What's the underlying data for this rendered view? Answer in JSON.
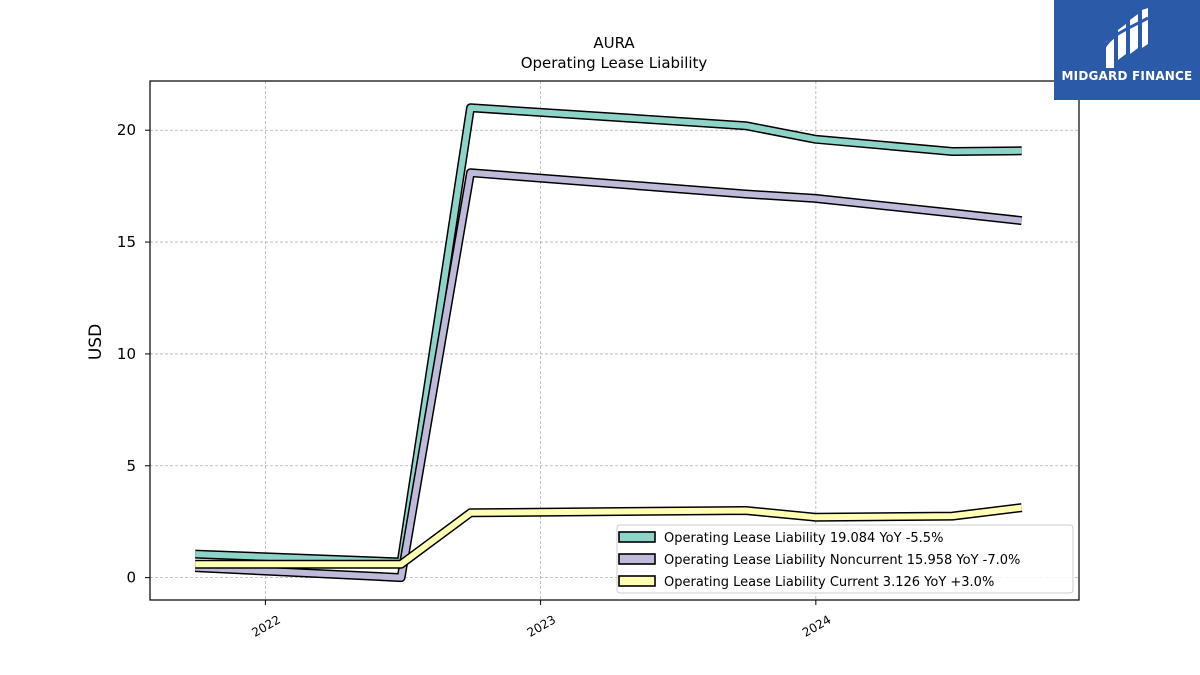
{
  "chart_data": {
    "type": "line",
    "title": "AURA",
    "subtitle": "Operating Lease Liability",
    "ylabel": "USD",
    "xlabel": "",
    "x": [
      "2021-09-30",
      "2022-06-30",
      "2022-09-30",
      "2023-09-30",
      "2023-12-31",
      "2024-06-30",
      "2024-09-30"
    ],
    "xlim": [
      "2021-08-01",
      "2024-12-15"
    ],
    "ylim": [
      -1,
      22.2
    ],
    "yticks": [
      0,
      5,
      10,
      15,
      20
    ],
    "xticks": [
      {
        "date": "2022-01-01",
        "label": "2022"
      },
      {
        "date": "2023-01-01",
        "label": "2023"
      },
      {
        "date": "2024-01-01",
        "label": "2024"
      }
    ],
    "grid": true,
    "legend_position": "lower-right",
    "series": [
      {
        "name": "Operating Lease Liability",
        "legend": "Operating Lease Liability  19.084 YoY -5.5%",
        "color": "#8dd3c7",
        "values": [
          1.05,
          0.7,
          21.0,
          20.2,
          19.6,
          19.05,
          19.08
        ]
      },
      {
        "name": "Operating Lease Liability Noncurrent",
        "legend": "Operating Lease Liability Noncurrent  15.958 YoY -7.0%",
        "color": "#bebada",
        "values": [
          0.45,
          0.0,
          18.1,
          17.15,
          16.95,
          16.3,
          15.96
        ]
      },
      {
        "name": "Operating Lease Liability Current",
        "legend": "Operating Lease Liability Current  3.126 YoY +3.0%",
        "color": "#ffffb3",
        "values": [
          0.6,
          0.6,
          2.9,
          3.0,
          2.7,
          2.75,
          3.13
        ]
      }
    ]
  },
  "logo": {
    "text": "MIDGARD FINANCE",
    "background": "#2b5aa8"
  }
}
